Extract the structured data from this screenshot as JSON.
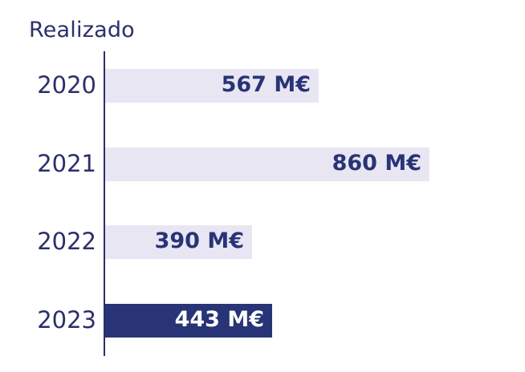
{
  "chart_data": {
    "type": "bar",
    "orientation": "horizontal",
    "title": "Realizado",
    "categories": [
      "2020",
      "2021",
      "2022",
      "2023"
    ],
    "values": [
      567,
      860,
      390,
      443
    ],
    "value_labels": [
      "567 M€",
      "860 M€",
      "390 M€",
      "443 M€"
    ],
    "unit": "M€",
    "xlim": [
      0,
      860
    ],
    "grid": false,
    "highlight_index": 3,
    "colors": {
      "bar": "#e8e6f2",
      "bar_highlight": "#283476",
      "label_dark": "#283476",
      "label_light": "#ffffff",
      "axis": "#2b2f6b"
    }
  }
}
